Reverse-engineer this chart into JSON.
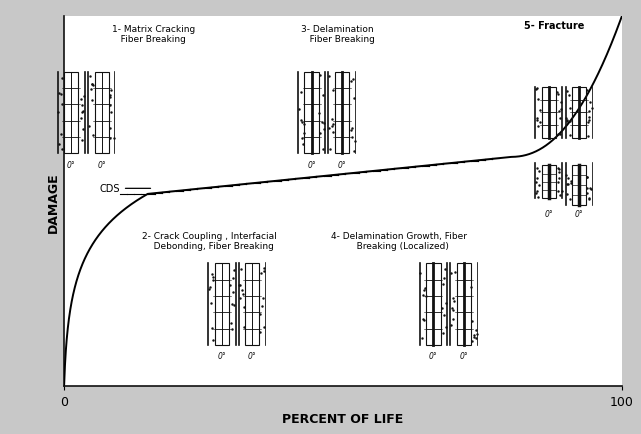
{
  "xlabel": "PERCENT OF LIFE",
  "ylabel": "DAMAGE",
  "xlim": [
    0,
    100
  ],
  "ylim": [
    0,
    1
  ],
  "bg_color": "#c8c8c8",
  "plot_bg": "#ffffff",
  "curve_color": "#000000",
  "annotations": {
    "label1": "1- Matrix Cracking\n   Fiber Breaking",
    "label2": "2- Crack Coupling , Interfacial\n   Debonding, Fiber Breaking",
    "label3": "3- Delamination\n   Fiber Breaking",
    "label4": "4- Delamination Growth, Fiber\n   Breaking (Localized)",
    "label5": "5- Fracture",
    "cds": "CDS"
  }
}
